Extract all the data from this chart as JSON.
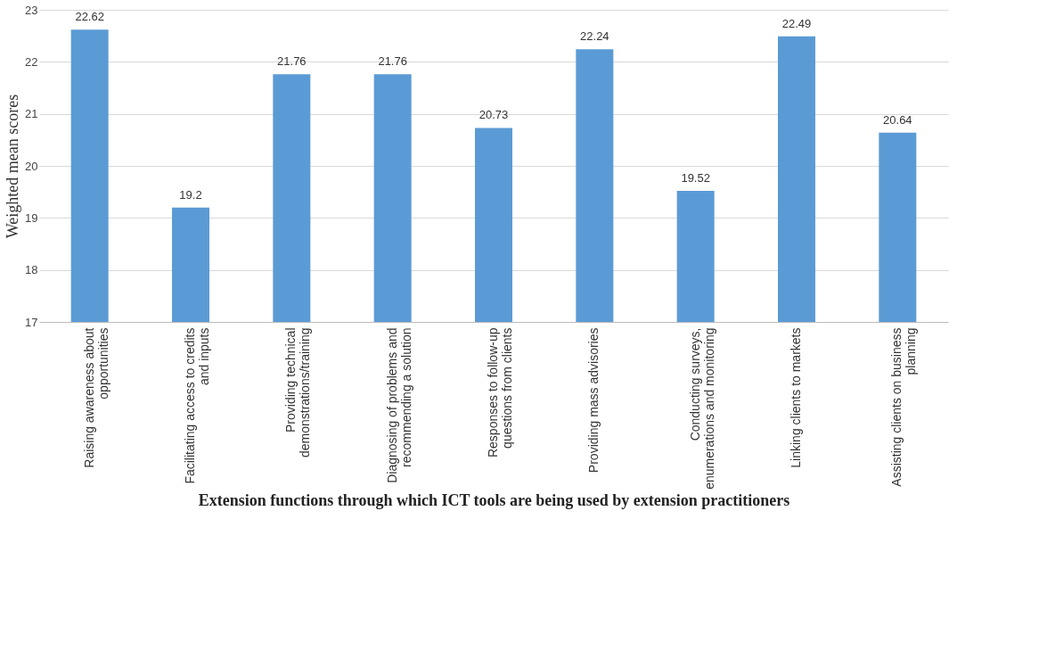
{
  "chart_data": {
    "type": "bar",
    "xlabel": "Extension functions through which ICT tools are being used by extension practitioners",
    "ylabel": "Weighted mean scores",
    "categories": [
      "Raising awareness about opportunities",
      "Facilitating access to credits and inputs",
      "Providing technical demonstrations/training",
      "Diagnosing of problems and recommending a solution",
      "Responses to follow-up questions from clients",
      "Providing mass advisories",
      "Conducting surveys, enumerations and monitoring",
      "Linking clients to markets",
      "Assisting clients on business planning"
    ],
    "values": [
      22.62,
      19.2,
      21.76,
      21.76,
      20.73,
      22.24,
      19.52,
      22.49,
      20.64
    ],
    "color": "#5b9bd5",
    "ylim": [
      17,
      23
    ],
    "yticks": [
      17,
      18,
      19,
      20,
      21,
      22,
      23
    ],
    "grid": "y",
    "data_labels": true
  }
}
